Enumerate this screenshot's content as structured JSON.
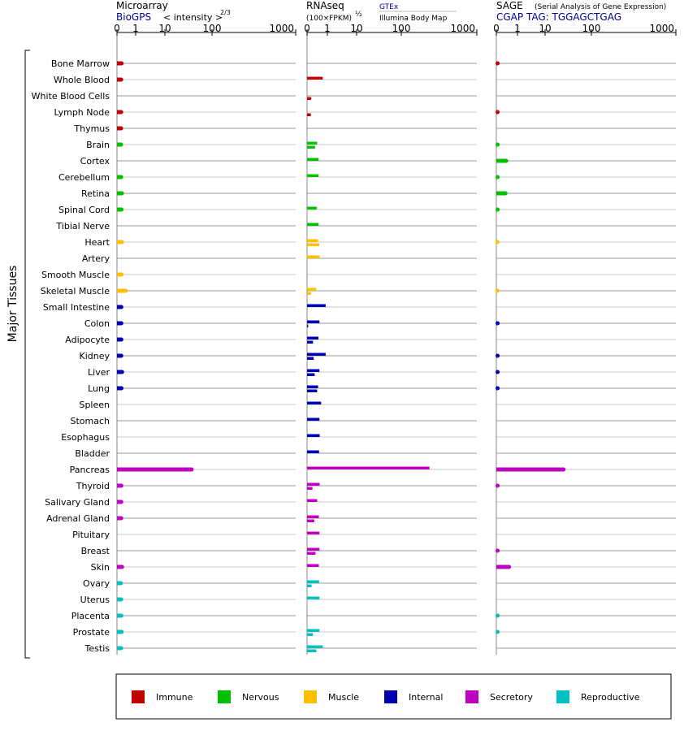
{
  "chart_data": {
    "type": "bar",
    "group_label": "Major Tissues",
    "panels": [
      {
        "id": "microarray",
        "title": "Microarray",
        "source": "BioGPS",
        "scale_note": "< intensity >",
        "scale_exp": "2/3",
        "ticks": [
          "0",
          "1",
          "10",
          "100",
          "1000"
        ]
      },
      {
        "id": "rnaseq",
        "title": "RNAseq",
        "scale_note": "(100×FPKM)",
        "scale_exp": "½",
        "legend_a": "GTEx",
        "legend_b": "Illumina Body Map",
        "ticks": [
          "0",
          "1",
          "10",
          "100",
          "1000"
        ]
      },
      {
        "id": "sage",
        "title": "SAGE",
        "subtitle": "(Serial Analysis of Gene Expression)",
        "source": "CGAP TAG: TGGAGCTGAG",
        "ticks": [
          "0",
          "1",
          "10",
          "100",
          "1000"
        ]
      }
    ],
    "categories": [
      {
        "name": "Immune",
        "color": "#c00000"
      },
      {
        "name": "Nervous",
        "color": "#00c000"
      },
      {
        "name": "Muscle",
        "color": "#ffc000"
      },
      {
        "name": "Internal",
        "color": "#0000b0"
      },
      {
        "name": "Secretory",
        "color": "#c000c0"
      },
      {
        "name": "Reproductive",
        "color": "#00c0c0"
      }
    ],
    "tissues": [
      {
        "name": "Bone Marrow",
        "cat": 0,
        "micro": 4.2,
        "gtex": null,
        "ibm": null,
        "sage": 0.05
      },
      {
        "name": "Whole Blood",
        "cat": 0,
        "micro": 3.6,
        "gtex": 8.5,
        "ibm": null,
        "sage": null
      },
      {
        "name": "White Blood Cells",
        "cat": 0,
        "micro": null,
        "gtex": null,
        "ibm": 0.6,
        "sage": null
      },
      {
        "name": "Lymph Node",
        "cat": 0,
        "micro": 3.6,
        "gtex": null,
        "ibm": 0.5,
        "sage": 0.05
      },
      {
        "name": "Thymus",
        "cat": 0,
        "micro": 3.5,
        "gtex": null,
        "ibm": null,
        "sage": null
      },
      {
        "name": "Brain",
        "cat": 1,
        "micro": 3.5,
        "gtex": 3.5,
        "ibm": 2.2,
        "sage": 0.05
      },
      {
        "name": "Cortex",
        "cat": 1,
        "micro": null,
        "gtex": 4.5,
        "ibm": null,
        "sage": 3.0
      },
      {
        "name": "Cerebellum",
        "cat": 1,
        "micro": 3.6,
        "gtex": 4.5,
        "ibm": null,
        "sage": 0.05
      },
      {
        "name": "Retina",
        "cat": 1,
        "micro": 4.6,
        "gtex": null,
        "ibm": null,
        "sage": 2.6
      },
      {
        "name": "Spinal Cord",
        "cat": 1,
        "micro": 4.0,
        "gtex": 3.2,
        "ibm": null,
        "sage": 0.05
      },
      {
        "name": "Tibial Nerve",
        "cat": 1,
        "micro": null,
        "gtex": 4.5,
        "ibm": null,
        "sage": null
      },
      {
        "name": "Heart",
        "cat": 2,
        "micro": 4.6,
        "gtex": 4.2,
        "ibm": 5.2,
        "sage": 0.03
      },
      {
        "name": "Artery",
        "cat": 2,
        "micro": null,
        "gtex": 5.5,
        "ibm": null,
        "sage": null
      },
      {
        "name": "Smooth Muscle",
        "cat": 2,
        "micro": 4.2,
        "gtex": null,
        "ibm": null,
        "sage": null
      },
      {
        "name": "Skeletal Muscle",
        "cat": 2,
        "micro": 11.0,
        "gtex": 3.0,
        "ibm": 0.5,
        "sage": 0.03
      },
      {
        "name": "Small Intestine",
        "cat": 3,
        "micro": 3.8,
        "gtex": 12.0,
        "ibm": null,
        "sage": null
      },
      {
        "name": "Colon",
        "cat": 3,
        "micro": 3.8,
        "gtex": 5.3,
        "ibm": 0.04,
        "sage": 0.05
      },
      {
        "name": "Adipocyte",
        "cat": 3,
        "micro": 3.8,
        "gtex": 4.5,
        "ibm": 1.2,
        "sage": null
      },
      {
        "name": "Kidney",
        "cat": 3,
        "micro": 3.7,
        "gtex": 12.0,
        "ibm": 1.5,
        "sage": 0.05
      },
      {
        "name": "Liver",
        "cat": 3,
        "micro": 4.8,
        "gtex": 5.3,
        "ibm": 2.0,
        "sage": 0.05
      },
      {
        "name": "Lung",
        "cat": 3,
        "micro": 4.0,
        "gtex": 4.2,
        "ibm": 3.5,
        "sage": 0.05
      },
      {
        "name": "Spleen",
        "cat": 3,
        "micro": null,
        "gtex": 6.8,
        "ibm": null,
        "sage": null
      },
      {
        "name": "Stomach",
        "cat": 3,
        "micro": null,
        "gtex": 5.3,
        "ibm": null,
        "sage": null
      },
      {
        "name": "Esophagus",
        "cat": 3,
        "micro": null,
        "gtex": 5.5,
        "ibm": null,
        "sage": null
      },
      {
        "name": "Bladder",
        "cat": 3,
        "micro": null,
        "gtex": 5.0,
        "ibm": null,
        "sage": null
      },
      {
        "name": "Pancreas",
        "cat": 4,
        "micro": 270,
        "gtex": 520,
        "ibm": null,
        "sage": 140
      },
      {
        "name": "Thyroid",
        "cat": 4,
        "micro": 3.8,
        "gtex": 5.5,
        "ibm": 1.0,
        "sage": 0.05
      },
      {
        "name": "Salivary Gland",
        "cat": 4,
        "micro": 3.7,
        "gtex": 3.5,
        "ibm": null,
        "sage": null
      },
      {
        "name": "Adrenal Gland",
        "cat": 4,
        "micro": 3.7,
        "gtex": 4.8,
        "ibm": 1.8,
        "sage": null
      },
      {
        "name": "Pituitary",
        "cat": 4,
        "micro": null,
        "gtex": 5.3,
        "ibm": null,
        "sage": null
      },
      {
        "name": "Breast",
        "cat": 4,
        "micro": null,
        "gtex": 5.3,
        "ibm": 2.5,
        "sage": 0.05
      },
      {
        "name": "Skin",
        "cat": 4,
        "micro": 4.8,
        "gtex": 4.8,
        "ibm": null,
        "sage": 5.0
      },
      {
        "name": "Ovary",
        "cat": 5,
        "micro": 3.2,
        "gtex": 5.0,
        "ibm": 0.7,
        "sage": null
      },
      {
        "name": "Uterus",
        "cat": 5,
        "micro": 3.6,
        "gtex": 5.3,
        "ibm": null,
        "sage": null
      },
      {
        "name": "Placenta",
        "cat": 5,
        "micro": 3.8,
        "gtex": null,
        "ibm": null,
        "sage": 0.05
      },
      {
        "name": "Prostate",
        "cat": 5,
        "micro": 4.2,
        "gtex": 5.3,
        "ibm": 1.2,
        "sage": 0.05
      },
      {
        "name": "Testis",
        "cat": 5,
        "micro": 3.6,
        "gtex": 8.5,
        "ibm": 3.0,
        "sage": null
      }
    ]
  }
}
